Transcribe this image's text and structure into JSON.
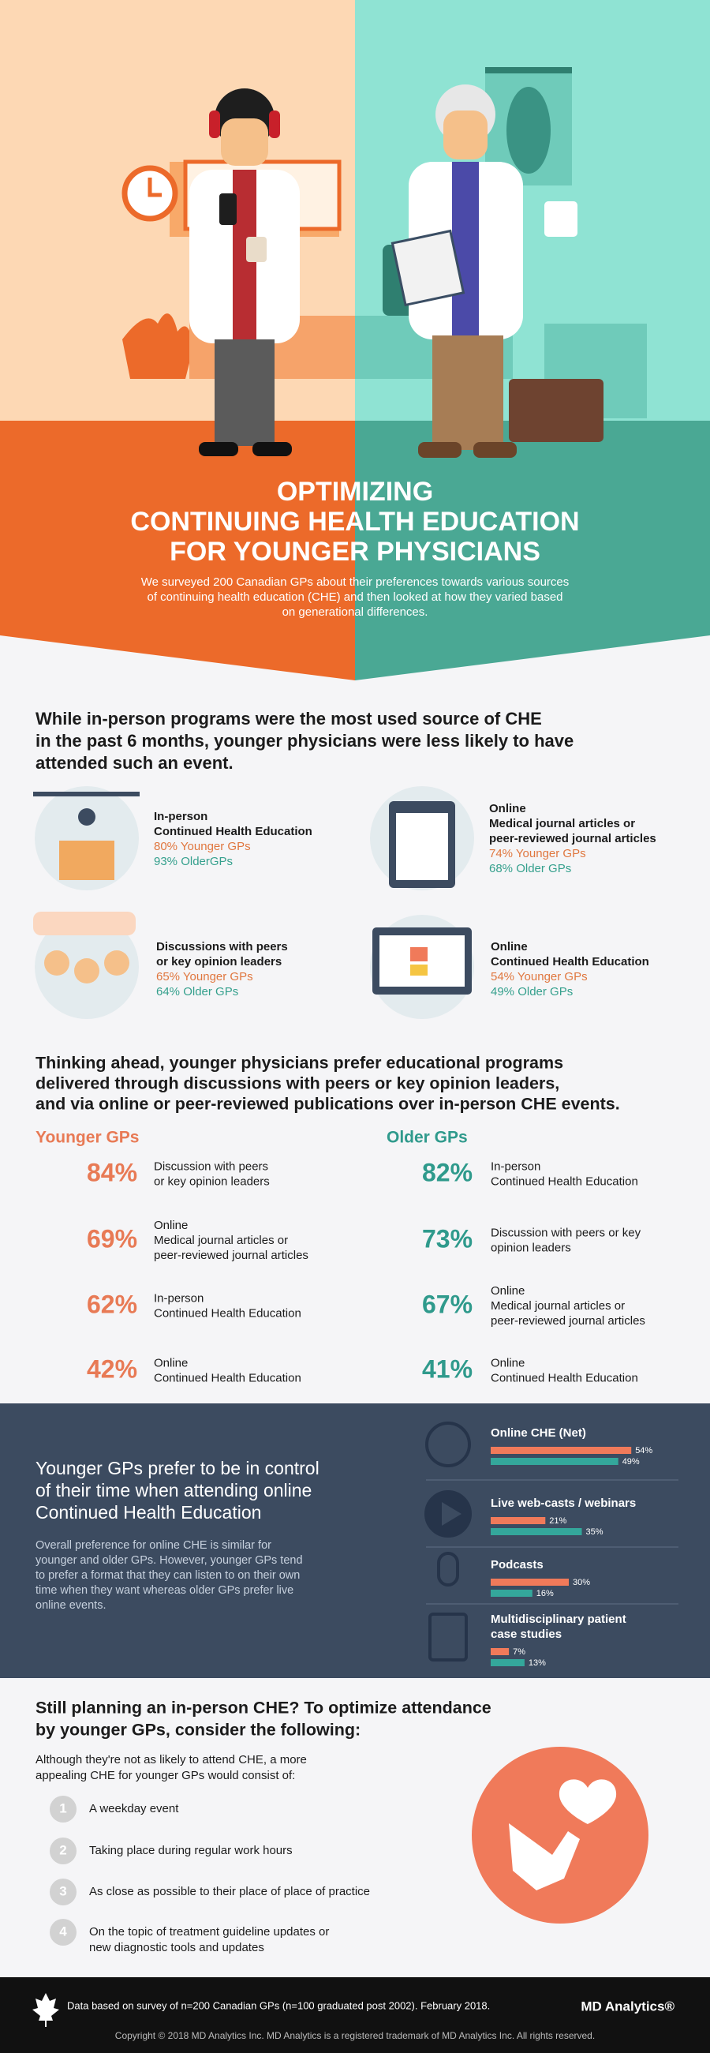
{
  "header": {
    "title_lines": [
      "OPTIMIZING",
      "CONTINUING HEALTH EDUCATION",
      "FOR YOUNGER PHYSICIANS"
    ],
    "subtitle_lines": [
      "We surveyed 200 Canadian GPs about their preferences towards various sources",
      "of continuing health education (CHE) and then looked at how they varied based",
      "on generational differences."
    ]
  },
  "sources": {
    "heading_lines": [
      "While in-person programs were the most used source of CHE",
      "in the past 6 months, younger physicians were less likely to have",
      "attended such an event."
    ],
    "items": [
      {
        "label_lines": [
          "In-person",
          "Continued Health Education"
        ],
        "younger": "80% Younger GPs",
        "older": "93% OlderGPs"
      },
      {
        "label_lines": [
          "Online",
          "Medical journal articles or",
          "peer-reviewed journal articles"
        ],
        "younger": "74% Younger GPs",
        "older": "68% Older GPs"
      },
      {
        "label_lines": [
          "Discussions with peers",
          "or key opinion leaders"
        ],
        "younger": "65% Younger GPs",
        "older": "64% Older GPs"
      },
      {
        "label_lines": [
          "Online",
          "Continued Health Education"
        ],
        "younger": "54% Younger GPs",
        "older": "49% Older GPs"
      }
    ]
  },
  "preferences": {
    "heading_lines": [
      "Thinking ahead, younger physicians prefer educational programs",
      "delivered through discussions with peers or key opinion leaders,",
      "and via online or peer-reviewed publications over in-person CHE events."
    ],
    "younger": {
      "title": "Younger GPs",
      "items": [
        {
          "value": "84%",
          "label_lines": [
            "Discussion with peers",
            "or key opinion leaders"
          ]
        },
        {
          "value": "69%",
          "label_lines": [
            "Online",
            "Medical journal articles or",
            "peer-reviewed journal articles"
          ]
        },
        {
          "value": "62%",
          "label_lines": [
            "In-person",
            "Continued Health Education"
          ]
        },
        {
          "value": "42%",
          "label_lines": [
            "Online",
            "Continued Health Education"
          ]
        }
      ]
    },
    "older": {
      "title": "Older GPs",
      "items": [
        {
          "value": "82%",
          "label_lines": [
            "In-person",
            "Continued Health Education"
          ]
        },
        {
          "value": "73%",
          "label_lines": [
            "Discussion with peers or key",
            "opinion leaders"
          ]
        },
        {
          "value": "67%",
          "label_lines": [
            "Online",
            "Medical journal articles or",
            "peer-reviewed journal articles"
          ]
        },
        {
          "value": "41%",
          "label_lines": [
            "Online",
            "Continued Health Education"
          ]
        }
      ]
    }
  },
  "online": {
    "heading_lines": [
      "Younger GPs prefer to be in control",
      "of their time when attending online",
      "Continued Health Education"
    ],
    "body_lines": [
      "Overall preference for online CHE is similar for",
      "younger and older GPs. However, younger GPs tend",
      "to prefer a format that they can listen to on their own",
      "time when they want whereas older GPs prefer live",
      "online events."
    ]
  },
  "chart_data": {
    "type": "bar",
    "categories": [
      "Online CHE (Net)",
      "Live web-casts / webinars",
      "Podcasts",
      "Multidisciplinary patient case studies"
    ],
    "series": [
      {
        "color": "#f07a5a",
        "values": [
          54,
          21,
          30,
          7
        ],
        "value_labels": [
          "54%",
          "21%",
          "30%",
          "7%"
        ]
      },
      {
        "color": "#34a79b",
        "values": [
          49,
          35,
          16,
          13
        ],
        "value_labels": [
          "49%",
          "35%",
          "16%",
          "13%"
        ]
      }
    ]
  },
  "planning": {
    "heading_lines": [
      "Still planning an in-person CHE? To optimize attendance",
      "by younger GPs, consider the following:"
    ],
    "intro_lines": [
      "Although they're not as likely to attend CHE, a more",
      "appealing CHE for younger GPs would consist of:"
    ],
    "items": [
      {
        "number": "1",
        "lines": [
          "A weekday event"
        ]
      },
      {
        "number": "2",
        "lines": [
          "Taking place during regular work hours"
        ]
      },
      {
        "number": "3",
        "lines": [
          "As close as possible to their place of place of practice"
        ]
      },
      {
        "number": "4",
        "lines": [
          "On the topic of treatment guideline updates or",
          "new diagnostic tools and updates"
        ]
      }
    ]
  },
  "footer": {
    "note": "Data based on survey of n=200 Canadian GPs (n=100 graduated post 2002). February 2018.",
    "logo": "MD Analytics®",
    "copyright": "Copyright © 2018 MD Analytics Inc. MD Analytics is a registered trademark of MD Analytics Inc. All rights reserved."
  }
}
